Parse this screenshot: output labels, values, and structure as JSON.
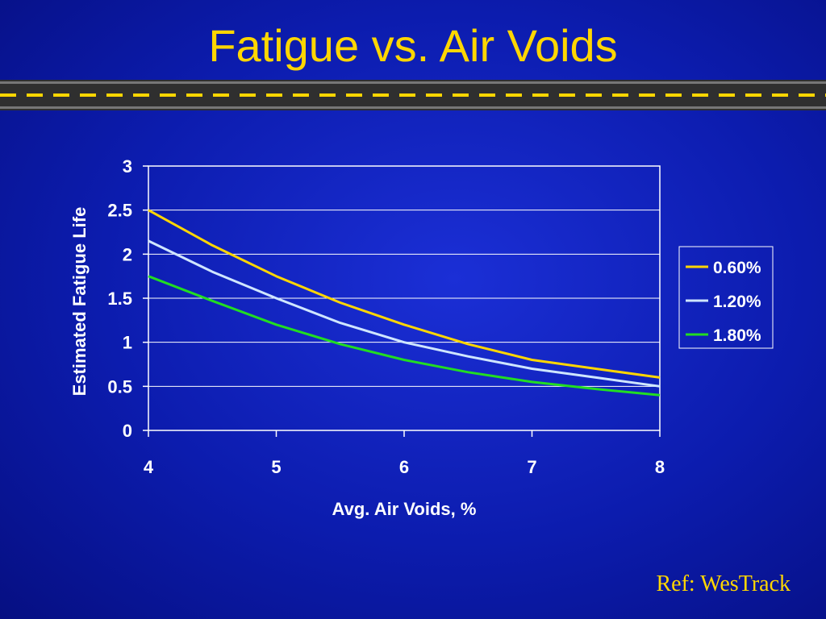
{
  "slide": {
    "title": "Fatigue vs. Air Voids",
    "reference": "Ref: WesTrack"
  },
  "colors": {
    "title": "#ffd600",
    "background": "#0c1cae",
    "road": "#3a3a3a",
    "dash": "#ffd600"
  },
  "chart_data": {
    "type": "line",
    "title": "",
    "xlabel": "Avg. Air Voids, %",
    "ylabel": "Estimated Fatigue Life",
    "xlim": [
      4,
      8
    ],
    "ylim": [
      0,
      3
    ],
    "xticks": [
      "4",
      "5",
      "6",
      "7",
      "8"
    ],
    "yticks": [
      "0",
      "0.5",
      "1",
      "1.5",
      "2",
      "2.5",
      "3"
    ],
    "grid": true,
    "legend_position": "right",
    "x": [
      4,
      4.5,
      5,
      5.5,
      6,
      6.5,
      7,
      7.5,
      8
    ],
    "series": [
      {
        "name": "0.60%",
        "color": "#ffd600",
        "values": [
          2.5,
          2.1,
          1.75,
          1.45,
          1.2,
          0.98,
          0.8,
          0.7,
          0.6
        ]
      },
      {
        "name": "1.20%",
        "color": "#cfe6ff",
        "values": [
          2.15,
          1.8,
          1.5,
          1.22,
          1.0,
          0.84,
          0.7,
          0.6,
          0.5
        ]
      },
      {
        "name": "1.80%",
        "color": "#22dd22",
        "values": [
          1.75,
          1.47,
          1.2,
          0.98,
          0.8,
          0.66,
          0.55,
          0.47,
          0.4
        ]
      }
    ]
  }
}
